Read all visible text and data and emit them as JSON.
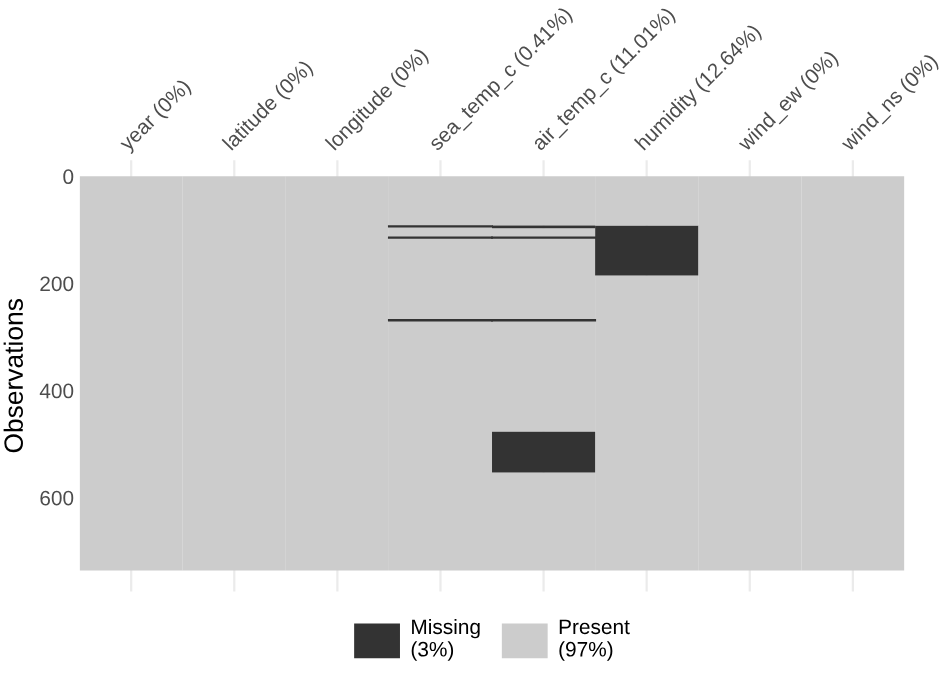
{
  "chart_data": {
    "type": "bar",
    "stacked": true,
    "categories": [
      "year (0%)",
      "latitude (0%)",
      "longitude (0%)",
      "sea_temp_c (0.41%)",
      "air_temp_c (11.01%)",
      "humidity (12.64%)",
      "wind_ew (0%)",
      "wind_ns (0%)"
    ],
    "ylabel": "Observations",
    "series": [
      {
        "name": "Present\n(97%)",
        "color": "#cccccc",
        "values": [
          736,
          736,
          736,
          93,
          92,
          92,
          736,
          736
        ]
      },
      {
        "name": "Missing\n(3%)",
        "color": "#333333",
        "values": [
          0,
          0,
          0,
          1,
          5,
          93,
          0,
          0
        ]
      },
      {
        "color": "#cccccc",
        "values": [
          0,
          0,
          0,
          20,
          17,
          551,
          0,
          0
        ]
      },
      {
        "color": "#333333",
        "values": [
          0,
          0,
          0,
          1,
          1,
          0,
          0,
          0
        ]
      },
      {
        "color": "#cccccc",
        "values": [
          0,
          0,
          0,
          153,
          153,
          0,
          0,
          0
        ]
      },
      {
        "color": "#333333",
        "values": [
          0,
          0,
          0,
          1,
          1,
          0,
          0,
          0
        ]
      },
      {
        "color": "#cccccc",
        "values": [
          0,
          0,
          0,
          467,
          208,
          0,
          0,
          0
        ]
      },
      {
        "color": "#333333",
        "values": [
          0,
          0,
          0,
          0,
          76,
          0,
          0,
          0
        ]
      },
      {
        "color": "#cccccc",
        "values": [
          0,
          0,
          0,
          0,
          183,
          0,
          0,
          0
        ]
      }
    ],
    "ylim": [
      775,
      -30
    ],
    "yticks": [
      0,
      200,
      400,
      600
    ],
    "grid": "x",
    "legend": "bottom"
  }
}
